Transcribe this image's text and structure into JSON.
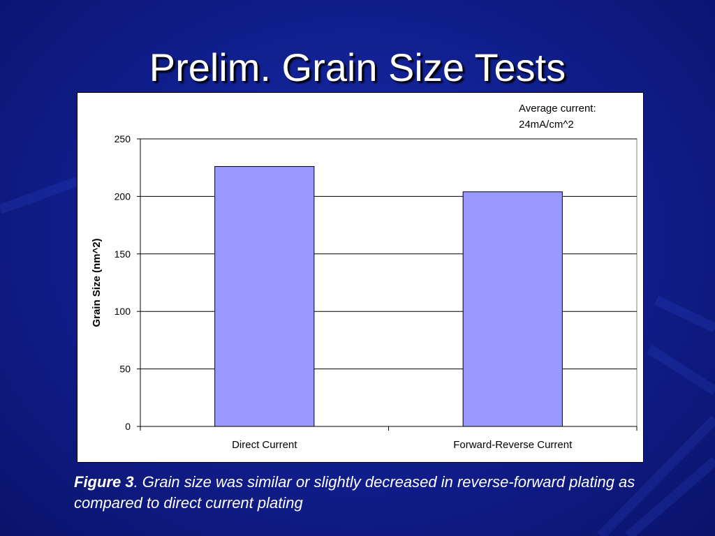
{
  "slide": {
    "title": "Prelim. Grain Size Tests",
    "background_color": "#101e8c"
  },
  "caption": {
    "figure_label": "Figure 3",
    "text": ". Grain size was similar or slightly decreased in reverse-forward plating as compared to direct current plating"
  },
  "chart_data": {
    "type": "bar",
    "categories": [
      "Direct Current",
      "Forward-Reverse Current"
    ],
    "values": [
      226,
      204
    ],
    "title": "",
    "xlabel": "",
    "ylabel": "Grain Size (nm^2)",
    "ylim": [
      0,
      250
    ],
    "yticks": [
      0,
      50,
      100,
      150,
      200,
      250
    ],
    "grid": true,
    "legend": "none",
    "annotation": [
      "Average current:",
      "24mA/cm^2"
    ],
    "bar_color": "#9999ff"
  }
}
